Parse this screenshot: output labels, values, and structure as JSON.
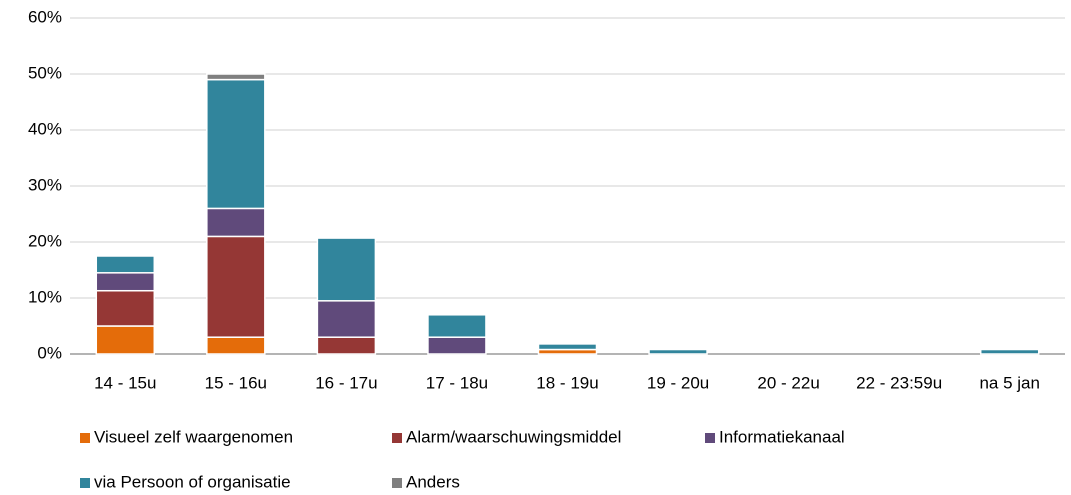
{
  "chart_data": {
    "type": "stacked_bar",
    "categories": [
      "14 - 15u",
      "15 - 16u",
      "16 - 17u",
      "17 - 18u",
      "18 - 19u",
      "19 - 20u",
      "20 - 22u",
      "22 - 23:59u",
      "na 5 jan"
    ],
    "series": [
      {
        "name": "Visueel zelf waargenomen",
        "color": "#e46c0a",
        "values": [
          5,
          3,
          0,
          0,
          0.8,
          0,
          0,
          0,
          0
        ]
      },
      {
        "name": "Alarm/waarschuwingsmiddel",
        "color": "#953735",
        "values": [
          6.3,
          18,
          3,
          0,
          0,
          0,
          0,
          0,
          0
        ]
      },
      {
        "name": "Informatiekanaal",
        "color": "#604a7b",
        "values": [
          3.2,
          5,
          6.5,
          3,
          0,
          0,
          0,
          0,
          0
        ]
      },
      {
        "name": "via Persoon of organisatie",
        "color": "#31859c",
        "values": [
          3,
          23,
          11.2,
          4,
          1,
          0.8,
          0,
          0,
          0.8
        ]
      },
      {
        "name": "Anders",
        "color": "#7f7f7f",
        "values": [
          0,
          1,
          0,
          0,
          0,
          0,
          0,
          0,
          0
        ]
      }
    ],
    "ylim": [
      0,
      60
    ],
    "yticks": [
      {
        "value": 0,
        "label": "0%"
      },
      {
        "value": 10,
        "label": "10%"
      },
      {
        "value": 20,
        "label": "20%"
      },
      {
        "value": 30,
        "label": "30%"
      },
      {
        "value": 40,
        "label": "40%"
      },
      {
        "value": 50,
        "label": "50%"
      },
      {
        "value": 60,
        "label": "60%"
      }
    ],
    "grid": true,
    "legend": "bottom"
  }
}
